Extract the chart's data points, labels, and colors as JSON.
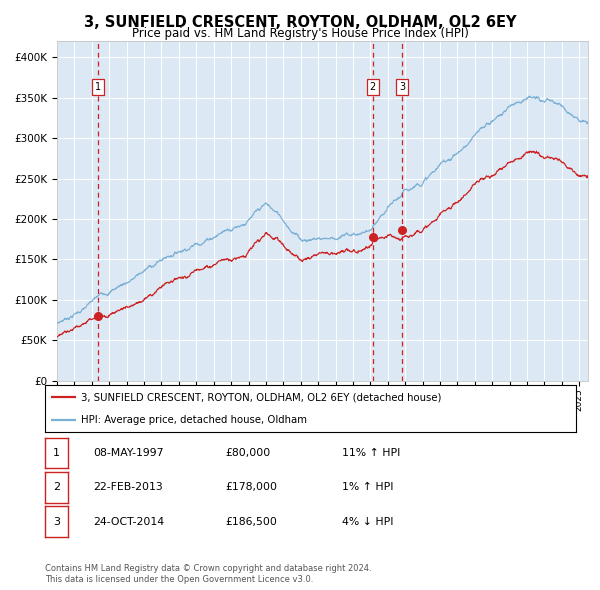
{
  "title": "3, SUNFIELD CRESCENT, ROYTON, OLDHAM, OL2 6EY",
  "subtitle": "Price paid vs. HM Land Registry's House Price Index (HPI)",
  "title_fontsize": 10.5,
  "subtitle_fontsize": 8.5,
  "background_color": "#dde8f5",
  "plot_bg_color": "#dde8f5",
  "hpi_line_color": "#7ab0d4",
  "price_line_color": "#cc2222",
  "marker_color": "#cc2222",
  "vline_color": "#cc2222",
  "xlim_start": 1995.0,
  "xlim_end": 2025.5,
  "ylim_min": 0,
  "ylim_max": 420000,
  "yticks": [
    0,
    50000,
    100000,
    150000,
    200000,
    250000,
    300000,
    350000,
    400000
  ],
  "ytick_labels": [
    "£0",
    "£50K",
    "£100K",
    "£150K",
    "£200K",
    "£250K",
    "£300K",
    "£350K",
    "£400K"
  ],
  "transactions": [
    {
      "num": 1,
      "date_dec": 1997.36,
      "price": 80000
    },
    {
      "num": 2,
      "date_dec": 2013.14,
      "price": 178000
    },
    {
      "num": 3,
      "date_dec": 2014.82,
      "price": 186500
    }
  ],
  "legend_price_label": "3, SUNFIELD CRESCENT, ROYTON, OLDHAM, OL2 6EY (detached house)",
  "legend_hpi_label": "HPI: Average price, detached house, Oldham",
  "table_rows": [
    {
      "num": 1,
      "date": "08-MAY-1997",
      "price": "£80,000",
      "hpi": "11% ↑ HPI"
    },
    {
      "num": 2,
      "date": "22-FEB-2013",
      "price": "£178,000",
      "hpi": "1% ↑ HPI"
    },
    {
      "num": 3,
      "date": "24-OCT-2014",
      "price": "£186,500",
      "hpi": "4% ↓ HPI"
    }
  ],
  "footnote1": "Contains HM Land Registry data © Crown copyright and database right 2024.",
  "footnote2": "This data is licensed under the Open Government Licence v3.0."
}
